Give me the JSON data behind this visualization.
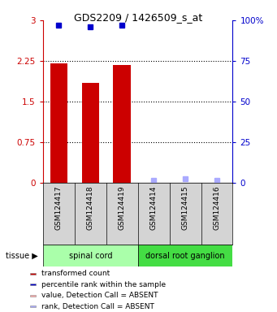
{
  "title": "GDS2209 / 1426509_s_at",
  "samples": [
    "GSM124417",
    "GSM124418",
    "GSM124419",
    "GSM124414",
    "GSM124415",
    "GSM124416"
  ],
  "bar_values": [
    2.2,
    1.85,
    2.18,
    0.0,
    0.0,
    0.0
  ],
  "bar_colors": [
    "#cc0000",
    "#cc0000",
    "#cc0000",
    "#ffaaaa",
    "#ffaaaa",
    "#ffaaaa"
  ],
  "percentile_values": [
    97.0,
    96.0,
    97.0,
    1.5,
    2.5,
    1.5
  ],
  "percentile_colors": [
    "#0000cc",
    "#0000cc",
    "#0000cc",
    "#aaaaff",
    "#aaaaff",
    "#aaaaff"
  ],
  "groups": [
    {
      "label": "spinal cord",
      "indices": [
        0,
        1,
        2
      ],
      "color": "#aaffaa"
    },
    {
      "label": "dorsal root ganglion",
      "indices": [
        3,
        4,
        5
      ],
      "color": "#44dd44"
    }
  ],
  "ylim_left": [
    0,
    3
  ],
  "ylim_right": [
    0,
    100
  ],
  "yticks_left": [
    0,
    0.75,
    1.5,
    2.25,
    3
  ],
  "yticks_right": [
    0,
    25,
    50,
    75,
    100
  ],
  "ytick_labels_left": [
    "0",
    "0.75",
    "1.5",
    "2.25",
    "3"
  ],
  "ytick_labels_right": [
    "0",
    "25",
    "50",
    "75",
    "100%"
  ],
  "hlines": [
    0.75,
    1.5,
    2.25
  ],
  "left_axis_color": "#cc0000",
  "right_axis_color": "#0000cc",
  "bar_width": 0.55,
  "marker_size": 5,
  "legend_items": [
    {
      "label": "transformed count",
      "color": "#cc0000"
    },
    {
      "label": "percentile rank within the sample",
      "color": "#0000cc"
    },
    {
      "label": "value, Detection Call = ABSENT",
      "color": "#ffaaaa"
    },
    {
      "label": "rank, Detection Call = ABSENT",
      "color": "#aaaaff"
    }
  ],
  "cell_bg": "#d4d4d4",
  "tissue_label": "tissue"
}
